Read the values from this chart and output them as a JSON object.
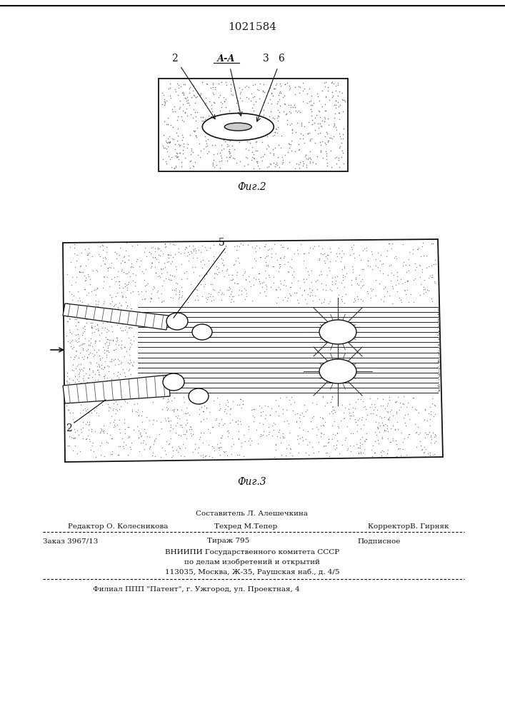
{
  "patent_number": "1021584",
  "fig2_label": "Фиг.2",
  "fig3_label": "Фиг.3",
  "label_2_fig2": "2",
  "label_AA": "А-А",
  "label_3": "3",
  "label_6": "6",
  "label_5": "5",
  "label_2_fig3": "2",
  "footer_line1": "Составитель Л. Алешечкина",
  "footer_line2_left": "Редактор О. Колесникова",
  "footer_line2_mid": "Техред М.Тепер",
  "footer_line2_right": "КорректорВ. Гирняк",
  "footer_line3_left": "Заказ 3967/13",
  "footer_line3_mid": "Тираж 795",
  "footer_line3_right": "Подписное",
  "footer_line4": "ВНИИПИ Государственного комитета СССР",
  "footer_line5": "по делам изобретений и открытий",
  "footer_line6": "113035, Москва, Ж-35, Раушская наб., д. 4/5",
  "footer_line7": "Филиал ППП \"Патент\", г. Ужгород, ул. Проектная, 4",
  "paper_color": "#ffffff"
}
